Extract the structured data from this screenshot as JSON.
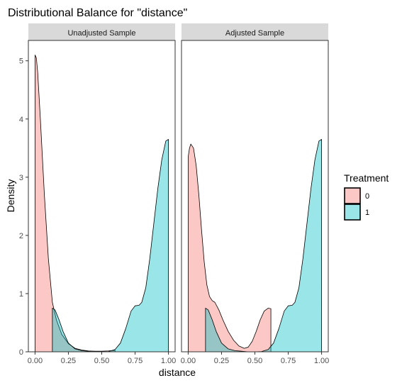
{
  "chart_data": {
    "type": "area",
    "title": "Distributional Balance for \"distance\"",
    "xlabel": "distance",
    "ylabel": "Density",
    "xlim": [
      -0.05,
      1.05
    ],
    "ylim": [
      0,
      5.35
    ],
    "x_ticks": [
      0,
      0.25,
      0.5,
      0.75,
      1
    ],
    "x_tick_labels": [
      "0.00",
      "0.25",
      "0.50",
      "0.75",
      "1.00"
    ],
    "y_ticks": [
      0,
      1,
      2,
      3,
      4,
      5
    ],
    "y_tick_labels": [
      "0",
      "1",
      "2",
      "3",
      "4",
      "5"
    ],
    "grid": false,
    "legend": {
      "title": "Treatment",
      "position": "right",
      "entries": [
        {
          "label": "0",
          "color": "#F8766D"
        },
        {
          "label": "1",
          "color": "#00BFC4"
        }
      ]
    },
    "fill_alpha": 0.4,
    "panels": [
      {
        "label": "Unadjusted Sample",
        "series": [
          {
            "name": "0",
            "color": "#F8766D",
            "x": [
              0.0,
              0.01,
              0.02,
              0.04,
              0.07,
              0.1,
              0.13,
              0.16,
              0.2,
              0.25,
              0.3,
              0.35,
              0.4,
              0.45,
              0.5,
              0.55,
              0.6
            ],
            "y": [
              5.1,
              5.05,
              4.8,
              4.0,
              2.7,
              1.6,
              0.85,
              0.55,
              0.3,
              0.14,
              0.06,
              0.03,
              0.015,
              0.01,
              0.01,
              0.015,
              0.025
            ]
          },
          {
            "name": "1",
            "color": "#00BFC4",
            "x": [
              0.13,
              0.15,
              0.18,
              0.21,
              0.25,
              0.3,
              0.35,
              0.4,
              0.45,
              0.5,
              0.55,
              0.6,
              0.64,
              0.68,
              0.72,
              0.75,
              0.78,
              0.8,
              0.83,
              0.86,
              0.89,
              0.92,
              0.95,
              0.98,
              1.0
            ],
            "y": [
              0.75,
              0.72,
              0.55,
              0.35,
              0.15,
              0.05,
              0.02,
              0.01,
              0.0,
              0.0,
              0.005,
              0.04,
              0.15,
              0.4,
              0.7,
              0.79,
              0.8,
              0.85,
              1.1,
              1.6,
              2.2,
              2.8,
              3.3,
              3.62,
              3.65
            ]
          }
        ]
      },
      {
        "label": "Adjusted Sample",
        "series": [
          {
            "name": "0",
            "color": "#F8766D",
            "x": [
              0.0,
              0.01,
              0.02,
              0.04,
              0.06,
              0.08,
              0.1,
              0.12,
              0.14,
              0.16,
              0.18,
              0.2,
              0.23,
              0.26,
              0.3,
              0.34,
              0.38,
              0.42,
              0.45,
              0.48,
              0.51,
              0.54,
              0.57,
              0.6,
              0.62
            ],
            "y": [
              3.35,
              3.5,
              3.57,
              3.5,
              3.2,
              2.7,
              2.1,
              1.55,
              1.15,
              0.95,
              0.88,
              0.85,
              0.72,
              0.55,
              0.35,
              0.2,
              0.1,
              0.06,
              0.08,
              0.18,
              0.35,
              0.55,
              0.7,
              0.75,
              0.74
            ]
          },
          {
            "name": "1",
            "color": "#00BFC4",
            "x": [
              0.13,
              0.15,
              0.18,
              0.21,
              0.25,
              0.3,
              0.35,
              0.4,
              0.45,
              0.5,
              0.55,
              0.6,
              0.64,
              0.68,
              0.72,
              0.75,
              0.78,
              0.8,
              0.83,
              0.86,
              0.89,
              0.92,
              0.95,
              0.98,
              1.0
            ],
            "y": [
              0.75,
              0.72,
              0.55,
              0.35,
              0.15,
              0.05,
              0.02,
              0.01,
              0.0,
              0.0,
              0.005,
              0.04,
              0.15,
              0.4,
              0.7,
              0.79,
              0.8,
              0.85,
              1.1,
              1.6,
              2.2,
              2.8,
              3.3,
              3.62,
              3.65
            ]
          }
        ]
      }
    ]
  }
}
